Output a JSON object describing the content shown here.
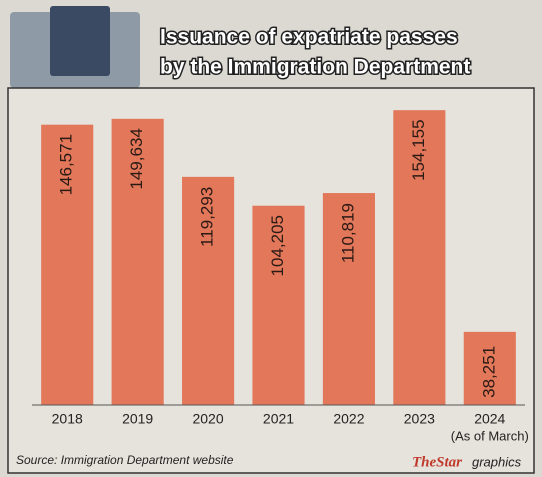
{
  "chart_data": {
    "type": "bar",
    "title": [
      "Issuance of expatriate passes",
      "by the Immigration Department"
    ],
    "categories": [
      "2018",
      "2019",
      "2020",
      "2021",
      "2022",
      "2023",
      "2024"
    ],
    "category_notes": [
      null,
      null,
      null,
      null,
      null,
      null,
      "(As of March)"
    ],
    "values": [
      146571,
      149634,
      119293,
      104205,
      110819,
      154155,
      38251
    ],
    "value_labels": [
      "146,571",
      "149,634",
      "119,293",
      "104,205",
      "110,819",
      "154,155",
      "38,251"
    ],
    "color": "#e2775a",
    "ylim": [
      0,
      160000
    ],
    "source": "Source: Immigration Department website",
    "credit": [
      "TheStar",
      "graphics"
    ]
  }
}
